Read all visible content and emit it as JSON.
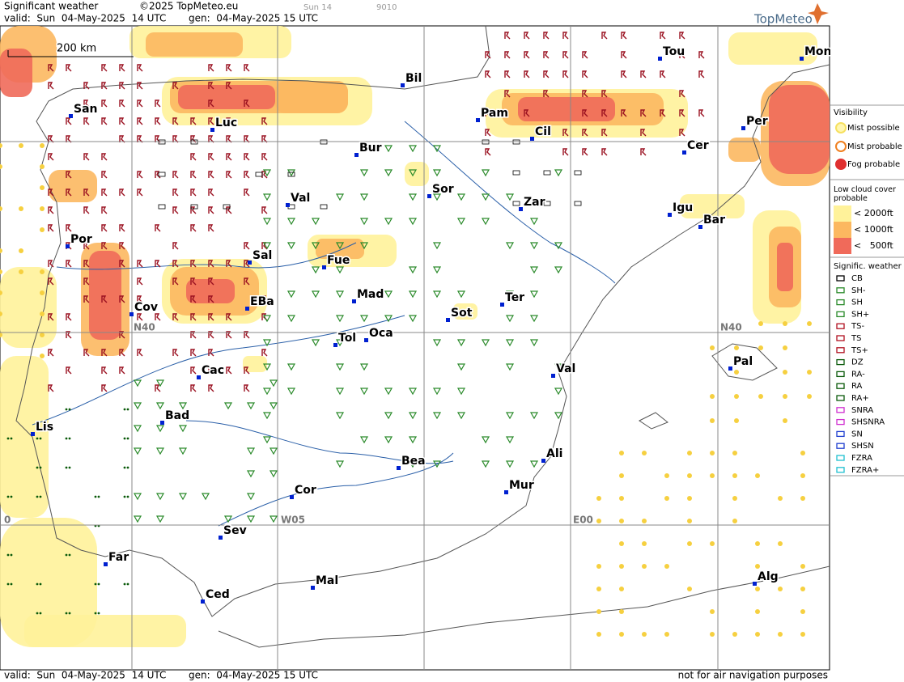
{
  "header": {
    "title": "Significant weather",
    "valid": "valid:  Sun  04-May-2025  14 UTC",
    "copyright": "©2025 TopMeteo.eu",
    "generated": "gen:  04-May-2025 15 UTC",
    "model_tag": "Sun 14",
    "code": "9010",
    "logo": "TopMeteo"
  },
  "map": {
    "scale": "200 km",
    "grid_labels": [
      "N40",
      "N40",
      "W05",
      "E00",
      "0"
    ],
    "cities": [
      "San",
      "Bil",
      "Pam",
      "Tou",
      "Mon",
      "Luc",
      "Cil",
      "Per",
      "Bur",
      "Cer",
      "Sor",
      "Val",
      "Zar",
      "Igu",
      "Bar",
      "Por",
      "Sal",
      "Fue",
      "Mad",
      "Cov",
      "EBa",
      "Sot",
      "Ter",
      "Tol",
      "Oca",
      "Cac",
      "Val",
      "Pal",
      "Lis",
      "Bad",
      "Bea",
      "Ali",
      "Cor",
      "Mur",
      "Sev",
      "Far",
      "Mal",
      "Alg",
      "Ced"
    ]
  },
  "legend": {
    "visibility": {
      "title": "Visibility",
      "items": [
        "Mist possible",
        "Mist probable",
        "Fog probable"
      ]
    },
    "low_cloud": {
      "title": "Low cloud cover probable",
      "items": [
        "< 2000ft",
        "< 1000ft",
        "<   500ft"
      ]
    },
    "weather": {
      "title": "Signific. weather",
      "items": [
        "CB",
        "SH-",
        "SH",
        "SH+",
        "TS-",
        "TS",
        "TS+",
        "DZ",
        "RA-",
        "RA",
        "RA+",
        "SNRA",
        "SHSNRA",
        "SN",
        "SHSN",
        "FZRA",
        "FZRA+"
      ]
    }
  },
  "footer": {
    "valid": "valid:  Sun  04-May-2025  14 UTC",
    "generated": "gen:  04-May-2025 15 UTC",
    "disclaimer": "not for air navigation purposes"
  }
}
